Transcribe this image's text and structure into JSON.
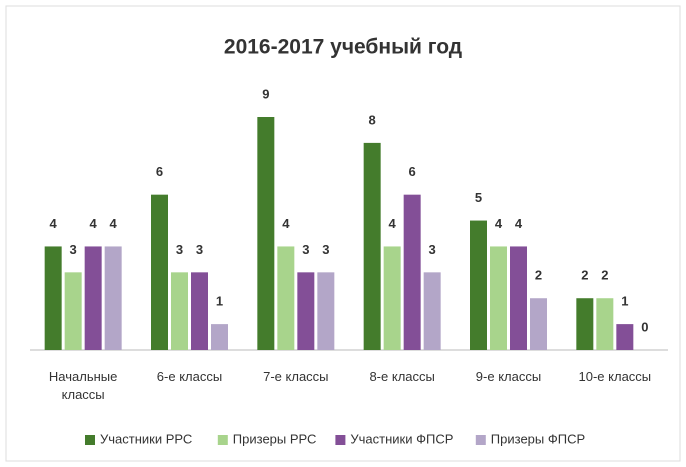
{
  "chart_data": {
    "type": "bar",
    "title": "2016-2017 учебный год",
    "categories": [
      "Начальные классы",
      "6-е классы",
      "7-е классы",
      "8-е классы",
      "9-е классы",
      "10-е классы"
    ],
    "series": [
      {
        "name": "Участники РРС",
        "color": "#447c2c",
        "values": [
          4,
          6,
          9,
          8,
          5,
          2
        ]
      },
      {
        "name": "Призеры РРС",
        "color": "#a8d48c",
        "values": [
          3,
          3,
          4,
          4,
          4,
          2
        ]
      },
      {
        "name": "Участники ФПСР",
        "color": "#834f97",
        "values": [
          4,
          3,
          3,
          6,
          4,
          1
        ]
      },
      {
        "name": "Призеры ФПСР",
        "color": "#b3a6c8",
        "values": [
          4,
          1,
          3,
          3,
          2,
          0
        ]
      }
    ],
    "legend": "bottom"
  }
}
